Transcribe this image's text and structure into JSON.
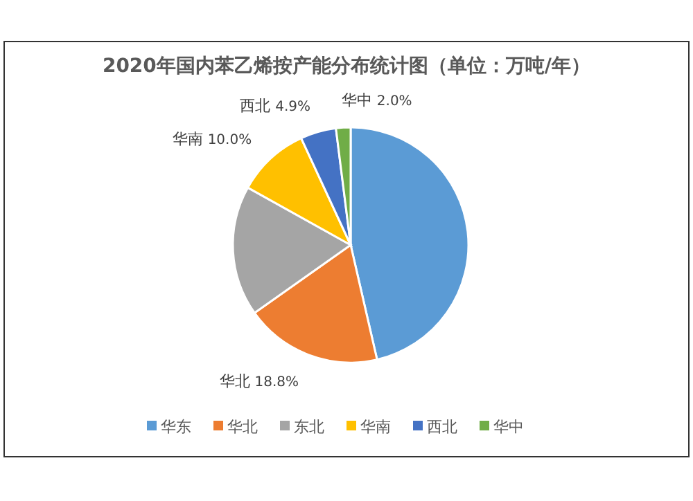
{
  "chart_data": {
    "type": "pie",
    "title": "2020年国内苯乙烯按产能分布统计图（单位：万吨/年）",
    "categories": [
      "华东",
      "华北",
      "东北",
      "华南",
      "西北",
      "华中"
    ],
    "values": [
      46.4,
      18.8,
      17.9,
      10.0,
      4.9,
      2.0
    ],
    "value_labels": [
      null,
      "18.8%",
      null,
      "10.0%",
      "4.9%",
      "2.0%"
    ],
    "colors": [
      "#5b9bd5",
      "#ed7d31",
      "#a5a5a5",
      "#ffc000",
      "#4472c4",
      "#70ad47"
    ],
    "legend": "bottom"
  }
}
